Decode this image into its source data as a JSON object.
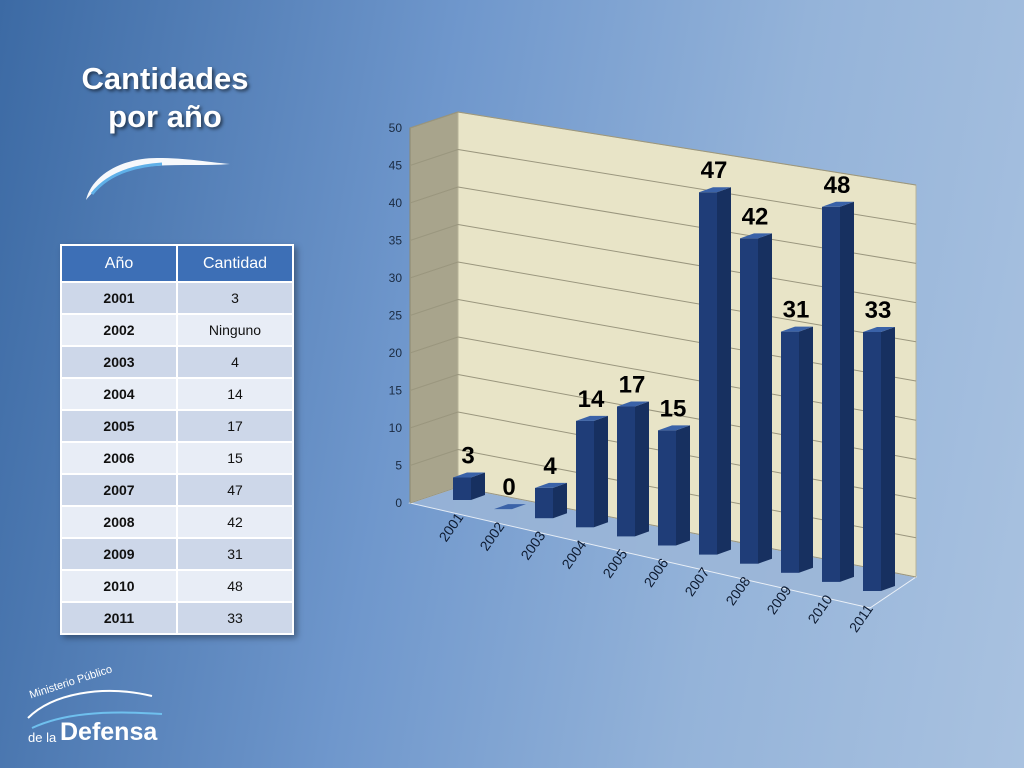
{
  "slide": {
    "title_line1": "Cantidades",
    "title_line2": "por año"
  },
  "table": {
    "headers": [
      "Año",
      "Cantidad"
    ],
    "rows": [
      [
        "2001",
        "3"
      ],
      [
        "2002",
        "Ninguno"
      ],
      [
        "2003",
        "4"
      ],
      [
        "2004",
        "14"
      ],
      [
        "2005",
        "17"
      ],
      [
        "2006",
        "15"
      ],
      [
        "2007",
        "47"
      ],
      [
        "2008",
        "42"
      ],
      [
        "2009",
        "31"
      ],
      [
        "2010",
        "48"
      ],
      [
        "2011",
        "33"
      ]
    ]
  },
  "chart_data": {
    "type": "bar",
    "style": "3d",
    "categories": [
      "2001",
      "2002",
      "2003",
      "2004",
      "2005",
      "2006",
      "2007",
      "2008",
      "2009",
      "2010",
      "2011"
    ],
    "values": [
      3,
      0,
      4,
      14,
      17,
      15,
      47,
      42,
      31,
      48,
      33
    ],
    "data_labels": [
      "3",
      "0",
      "4",
      "14",
      "17",
      "15",
      "47",
      "42",
      "31",
      "48",
      "33"
    ],
    "y_ticks": [
      "0",
      "5",
      "10",
      "15",
      "20",
      "25",
      "30",
      "35",
      "40",
      "45",
      "50"
    ],
    "ylim": [
      0,
      50
    ],
    "grid": true,
    "legend": "none",
    "colors": {
      "bar": "#1f3d78",
      "wall": "#e8e4c7",
      "bar_label": "#000000"
    }
  },
  "logo": {
    "line1": "Ministerio Público",
    "line2": "de la",
    "line3": "Defensa"
  }
}
